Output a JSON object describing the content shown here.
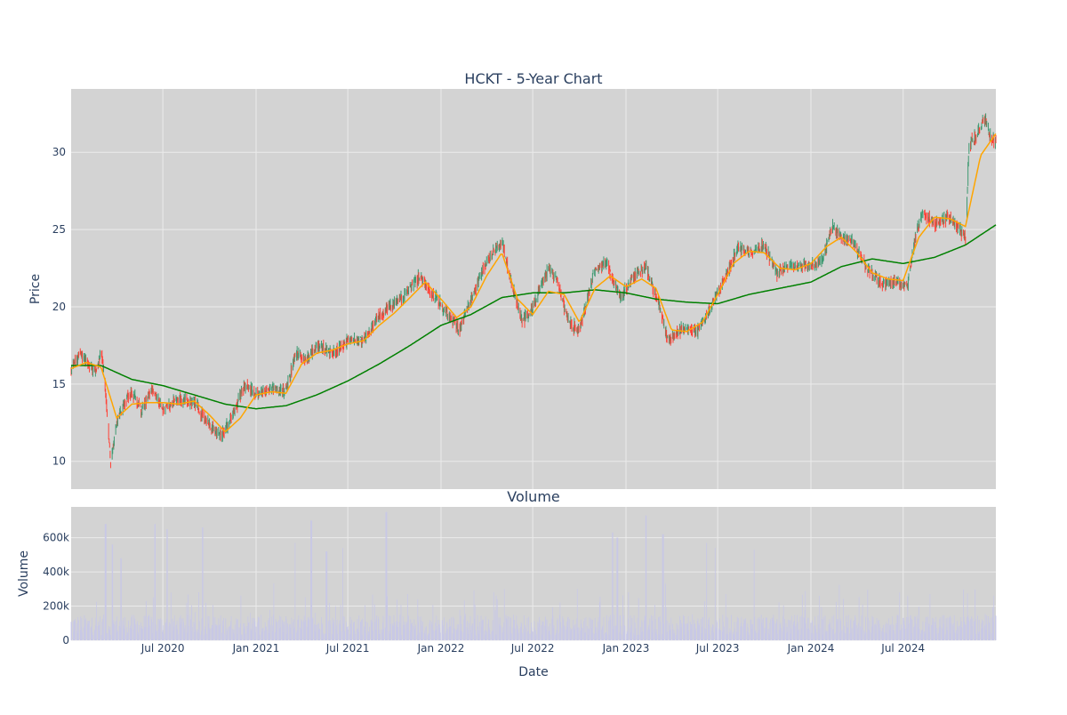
{
  "colors": {
    "plot_bg": "#d3d3d3",
    "grid": "#ebebeb",
    "up": "#3d9970",
    "down": "#ff4136",
    "ma_short": "#ffa500",
    "ma_long": "#008000",
    "volume": "#c8c8e6",
    "text": "#2a3f5f"
  },
  "chart_data": [
    {
      "type": "candlestick",
      "title": "HCKT - 5-Year Chart",
      "ylabel": "Price",
      "ylim": [
        8.2,
        34.1
      ],
      "xlim": [
        "2020-01-02",
        "2024-12-31"
      ],
      "y_ticks": [
        10,
        15,
        20,
        25,
        30
      ],
      "grid": true,
      "legend": "none",
      "anchors": [
        [
          "2020-01-02",
          16.0
        ],
        [
          "2020-01-20",
          16.9
        ],
        [
          "2020-02-05",
          16.3
        ],
        [
          "2020-02-20",
          15.8
        ],
        [
          "2020-03-02",
          17.2
        ],
        [
          "2020-03-12",
          13.5
        ],
        [
          "2020-03-20",
          9.8
        ],
        [
          "2020-03-31",
          12.3
        ],
        [
          "2020-04-15",
          13.8
        ],
        [
          "2020-05-01",
          14.5
        ],
        [
          "2020-05-20",
          13.2
        ],
        [
          "2020-06-10",
          14.8
        ],
        [
          "2020-07-01",
          13.3
        ],
        [
          "2020-08-01",
          14.0
        ],
        [
          "2020-09-01",
          13.8
        ],
        [
          "2020-10-01",
          12.3
        ],
        [
          "2020-10-25",
          11.6
        ],
        [
          "2020-11-20",
          13.3
        ],
        [
          "2020-12-10",
          15.0
        ],
        [
          "2021-01-01",
          14.3
        ],
        [
          "2021-02-01",
          14.8
        ],
        [
          "2021-03-01",
          14.5
        ],
        [
          "2021-03-20",
          17.0
        ],
        [
          "2021-04-10",
          16.5
        ],
        [
          "2021-05-01",
          17.5
        ],
        [
          "2021-06-01",
          17.0
        ],
        [
          "2021-07-01",
          17.9
        ],
        [
          "2021-08-01",
          17.8
        ],
        [
          "2021-09-01",
          19.5
        ],
        [
          "2021-10-15",
          20.5
        ],
        [
          "2021-11-20",
          22.0
        ],
        [
          "2021-12-15",
          20.8
        ],
        [
          "2022-01-15",
          19.5
        ],
        [
          "2022-02-05",
          18.5
        ],
        [
          "2022-03-01",
          20.5
        ],
        [
          "2022-04-01",
          23.0
        ],
        [
          "2022-05-01",
          24.2
        ],
        [
          "2022-05-20",
          21.5
        ],
        [
          "2022-06-10",
          19.0
        ],
        [
          "2022-07-01",
          20.0
        ],
        [
          "2022-08-01",
          22.5
        ],
        [
          "2022-08-20",
          21.5
        ],
        [
          "2022-09-10",
          19.0
        ],
        [
          "2022-10-01",
          18.5
        ],
        [
          "2022-11-01",
          22.5
        ],
        [
          "2022-11-25",
          22.8
        ],
        [
          "2022-12-20",
          20.5
        ],
        [
          "2023-01-20",
          22.2
        ],
        [
          "2023-02-10",
          22.5
        ],
        [
          "2023-03-10",
          19.8
        ],
        [
          "2023-03-25",
          17.8
        ],
        [
          "2023-04-20",
          18.5
        ],
        [
          "2023-05-20",
          18.4
        ],
        [
          "2023-06-10",
          19.5
        ],
        [
          "2023-07-10",
          21.5
        ],
        [
          "2023-08-10",
          23.8
        ],
        [
          "2023-09-01",
          23.5
        ],
        [
          "2023-10-01",
          24.0
        ],
        [
          "2023-10-25",
          22.2
        ],
        [
          "2023-11-20",
          22.6
        ],
        [
          "2024-01-10",
          22.8
        ],
        [
          "2024-01-25",
          23.0
        ],
        [
          "2024-02-10",
          25.2
        ],
        [
          "2024-03-01",
          24.5
        ],
        [
          "2024-03-25",
          24.2
        ],
        [
          "2024-04-20",
          22.5
        ],
        [
          "2024-05-20",
          21.5
        ],
        [
          "2024-06-20",
          21.6
        ],
        [
          "2024-07-10",
          21.3
        ],
        [
          "2024-07-25",
          24.5
        ],
        [
          "2024-08-10",
          26.2
        ],
        [
          "2024-09-01",
          25.3
        ],
        [
          "2024-10-01",
          25.8
        ],
        [
          "2024-11-01",
          24.5
        ],
        [
          "2024-11-08",
          30.5
        ],
        [
          "2024-11-25",
          31.2
        ],
        [
          "2024-12-10",
          32.3
        ],
        [
          "2024-12-18",
          31.0
        ],
        [
          "2024-12-31",
          30.7
        ]
      ],
      "ma_short_anchors": [
        [
          "2020-01-02",
          16.0
        ],
        [
          "2020-02-01",
          16.4
        ],
        [
          "2020-03-01",
          16.1
        ],
        [
          "2020-04-01",
          12.8
        ],
        [
          "2020-05-01",
          13.7
        ],
        [
          "2020-06-01",
          13.8
        ],
        [
          "2020-07-01",
          13.8
        ],
        [
          "2020-08-01",
          13.7
        ],
        [
          "2020-09-01",
          13.9
        ],
        [
          "2020-10-01",
          13.0
        ],
        [
          "2020-11-01",
          11.9
        ],
        [
          "2020-12-01",
          12.8
        ],
        [
          "2021-01-01",
          14.3
        ],
        [
          "2021-02-01",
          14.5
        ],
        [
          "2021-03-01",
          14.4
        ],
        [
          "2021-04-01",
          16.3
        ],
        [
          "2021-05-01",
          17.0
        ],
        [
          "2021-06-01",
          17.2
        ],
        [
          "2021-07-01",
          17.6
        ],
        [
          "2021-08-01",
          17.8
        ],
        [
          "2021-09-01",
          18.8
        ],
        [
          "2021-10-01",
          19.6
        ],
        [
          "2021-11-01",
          20.6
        ],
        [
          "2021-12-01",
          21.6
        ],
        [
          "2022-01-01",
          20.5
        ],
        [
          "2022-02-01",
          19.3
        ],
        [
          "2022-03-01",
          20.0
        ],
        [
          "2022-04-01",
          22.0
        ],
        [
          "2022-05-01",
          23.5
        ],
        [
          "2022-06-01",
          20.5
        ],
        [
          "2022-07-01",
          19.5
        ],
        [
          "2022-08-01",
          21.0
        ],
        [
          "2022-09-01",
          20.8
        ],
        [
          "2022-10-01",
          19.0
        ],
        [
          "2022-11-01",
          21.2
        ],
        [
          "2022-12-01",
          22.0
        ],
        [
          "2023-01-01",
          21.3
        ],
        [
          "2023-02-01",
          21.8
        ],
        [
          "2023-03-01",
          21.2
        ],
        [
          "2023-04-01",
          18.5
        ],
        [
          "2023-05-01",
          18.4
        ],
        [
          "2023-06-01",
          19.0
        ],
        [
          "2023-07-01",
          20.8
        ],
        [
          "2023-08-01",
          22.8
        ],
        [
          "2023-09-01",
          23.6
        ],
        [
          "2023-10-01",
          23.5
        ],
        [
          "2023-11-01",
          22.5
        ],
        [
          "2023-12-01",
          22.4
        ],
        [
          "2024-01-01",
          22.8
        ],
        [
          "2024-02-01",
          23.9
        ],
        [
          "2024-03-01",
          24.5
        ],
        [
          "2024-04-01",
          23.5
        ],
        [
          "2024-05-01",
          22.2
        ],
        [
          "2024-06-01",
          21.8
        ],
        [
          "2024-07-01",
          21.7
        ],
        [
          "2024-08-01",
          24.5
        ],
        [
          "2024-09-01",
          25.8
        ],
        [
          "2024-10-01",
          25.7
        ],
        [
          "2024-11-01",
          25.2
        ],
        [
          "2024-12-01",
          29.8
        ],
        [
          "2024-12-31",
          31.2
        ]
      ],
      "ma_long_anchors": [
        [
          "2020-01-02",
          16.2
        ],
        [
          "2020-03-01",
          16.2
        ],
        [
          "2020-05-01",
          15.3
        ],
        [
          "2020-07-01",
          14.9
        ],
        [
          "2020-09-01",
          14.3
        ],
        [
          "2020-11-01",
          13.7
        ],
        [
          "2021-01-01",
          13.4
        ],
        [
          "2021-03-01",
          13.6
        ],
        [
          "2021-05-01",
          14.3
        ],
        [
          "2021-07-01",
          15.2
        ],
        [
          "2021-09-01",
          16.3
        ],
        [
          "2021-11-01",
          17.5
        ],
        [
          "2022-01-01",
          18.8
        ],
        [
          "2022-03-01",
          19.5
        ],
        [
          "2022-05-01",
          20.6
        ],
        [
          "2022-07-01",
          20.9
        ],
        [
          "2022-09-01",
          20.9
        ],
        [
          "2022-11-01",
          21.1
        ],
        [
          "2023-01-01",
          20.9
        ],
        [
          "2023-03-01",
          20.5
        ],
        [
          "2023-05-01",
          20.3
        ],
        [
          "2023-07-01",
          20.2
        ],
        [
          "2023-09-01",
          20.8
        ],
        [
          "2023-11-01",
          21.2
        ],
        [
          "2024-01-01",
          21.6
        ],
        [
          "2024-03-01",
          22.6
        ],
        [
          "2024-05-01",
          23.1
        ],
        [
          "2024-07-01",
          22.8
        ],
        [
          "2024-09-01",
          23.2
        ],
        [
          "2024-11-01",
          24.0
        ],
        [
          "2024-12-31",
          25.3
        ]
      ]
    },
    {
      "type": "bar",
      "title": "Volume",
      "xlabel": "Date",
      "ylabel": "Volume",
      "ylim": [
        0,
        780000
      ],
      "y_ticks": [
        0,
        200000,
        400000,
        600000
      ],
      "y_tick_labels": [
        "0",
        "200k",
        "400k",
        "600k"
      ],
      "x_ticks": [
        "2020-07-01",
        "2021-01-01",
        "2021-07-01",
        "2022-01-01",
        "2022-07-01",
        "2023-01-01",
        "2023-07-01",
        "2024-01-01",
        "2024-07-01"
      ],
      "x_tick_labels": [
        "Jul 2020",
        "Jan 2021",
        "Jul 2021",
        "Jan 2022",
        "Jul 2022",
        "Jan 2023",
        "Jul 2023",
        "Jan 2024",
        "Jul 2024"
      ],
      "grid": true,
      "volume_spikes": [
        [
          "2020-03-10",
          680000
        ],
        [
          "2020-03-23",
          560000
        ],
        [
          "2020-04-10",
          480000
        ],
        [
          "2020-06-15",
          680000
        ],
        [
          "2020-07-10",
          650000
        ],
        [
          "2020-09-18",
          660000
        ],
        [
          "2021-03-20",
          570000
        ],
        [
          "2021-04-20",
          700000
        ],
        [
          "2021-05-20",
          520000
        ],
        [
          "2021-06-20",
          540000
        ],
        [
          "2021-09-15",
          750000
        ],
        [
          "2022-12-05",
          630000
        ],
        [
          "2022-12-15",
          600000
        ],
        [
          "2023-02-10",
          730000
        ],
        [
          "2023-03-15",
          620000
        ],
        [
          "2023-06-10",
          570000
        ],
        [
          "2023-06-25",
          540000
        ],
        [
          "2023-09-10",
          530000
        ]
      ]
    }
  ]
}
